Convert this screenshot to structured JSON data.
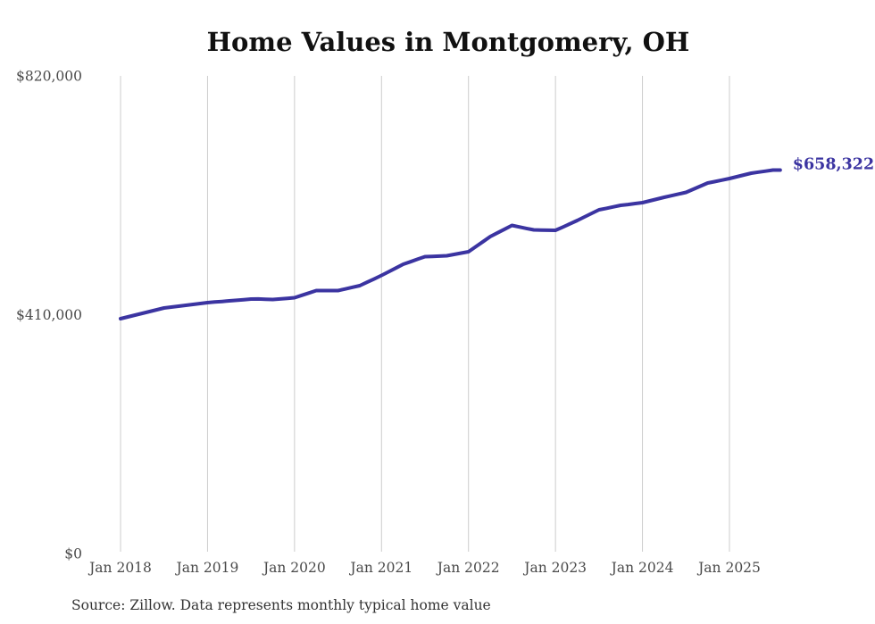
{
  "page": {
    "background": "#ffffff"
  },
  "chart_data": {
    "type": "line",
    "title": "Home Values in Montgomery, OH",
    "source_note": "Source: Zillow. Data represents monthly typical home value",
    "end_label": "$658,322",
    "end_value": 658322,
    "line_color": "#3b34a1",
    "grid_color": "#cccccc",
    "title_color": "#111111",
    "tick_label_color": "#4a4a4a",
    "source_color": "#333333",
    "ylabel": "",
    "xlabel": "",
    "ylim": [
      0,
      820000
    ],
    "grid": "vertical-gridlines-at-january-ticks",
    "legend": "none",
    "x_interval": "monthly",
    "x_start": "Jan 2018",
    "x_end": "Aug 2025",
    "x_ticks": [
      "Jan 2018",
      "Jan 2019",
      "Jan 2020",
      "Jan 2021",
      "Jan 2022",
      "Jan 2023",
      "Jan 2024",
      "Jan 2025"
    ],
    "y_ticks": [
      {
        "value": 820000,
        "label": "$820,000"
      },
      {
        "value": 410000,
        "label": "$410,000"
      },
      {
        "value": 0,
        "label": "$0"
      }
    ],
    "values": [
      403100,
      406100,
      409200,
      412300,
      415400,
      418500,
      421500,
      423000,
      424600,
      426100,
      427600,
      429100,
      430700,
      431700,
      432700,
      433700,
      434700,
      435700,
      436800,
      437000,
      436500,
      436000,
      437000,
      438000,
      439100,
      443200,
      447300,
      451400,
      451400,
      451400,
      451400,
      454200,
      457000,
      459800,
      465700,
      471500,
      477400,
      483800,
      490200,
      496600,
      500900,
      505300,
      509600,
      510100,
      510600,
      511100,
      513400,
      515700,
      518000,
      526700,
      535400,
      544100,
      550500,
      556800,
      563200,
      560700,
      558100,
      555600,
      555300,
      555000,
      554800,
      560400,
      566100,
      571700,
      577800,
      584000,
      590100,
      592600,
      595200,
      597700,
      599200,
      600800,
      602300,
      605400,
      608500,
      611500,
      614300,
      617200,
      620000,
      625400,
      630700,
      636100,
      638600,
      641200,
      643700,
      646800,
      649800,
      652900,
      654700,
      656500,
      658300,
      658322
    ]
  }
}
